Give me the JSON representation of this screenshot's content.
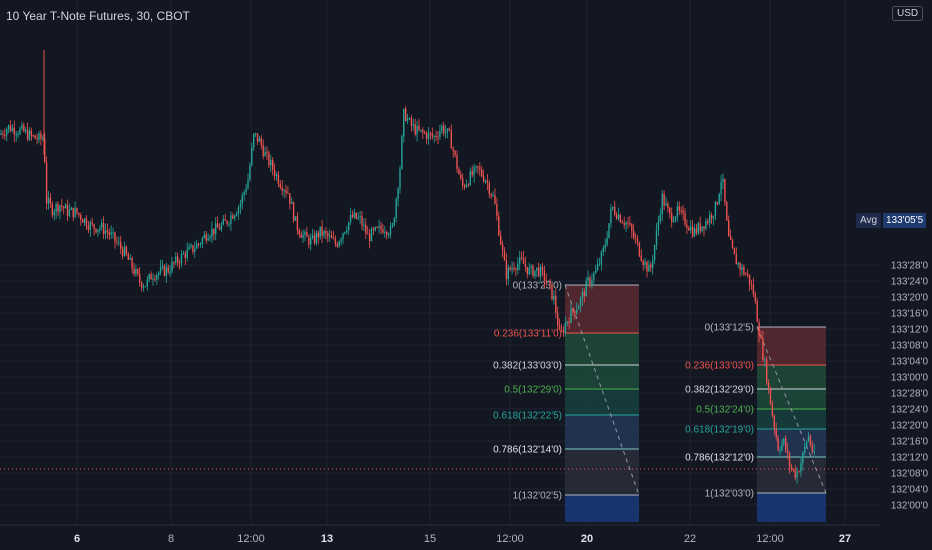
{
  "header": {
    "title": "10 Year T-Note Futures, 30, CBOT",
    "currency": "USD"
  },
  "price_tags": {
    "avg_label": "Avg",
    "avg_value": "133'05'5"
  },
  "colors": {
    "background": "#131722",
    "up": "#26a69a",
    "down": "#ef5350",
    "grid": "#1f2330",
    "axis_text": "#b2b5be"
  },
  "chart_data": {
    "type": "candlestick",
    "title": "10 Year T-Note Futures, 30, CBOT",
    "currency": "USD",
    "y_axis": {
      "position": "right",
      "ylim": [
        "131'30'0",
        "133'30'0"
      ],
      "ticks": [
        "132'00'0",
        "132'04'0",
        "132'08'0",
        "132'12'0",
        "132'16'0",
        "132'20'0",
        "132'24'0",
        "132'28'0",
        "133'00'0",
        "133'04'0",
        "133'08'0",
        "133'12'0",
        "133'16'0",
        "133'20'0",
        "133'24'0",
        "133'28'0"
      ]
    },
    "x_axis": {
      "ticks": [
        {
          "label": "6",
          "bold": true
        },
        {
          "label": "8",
          "bold": false
        },
        {
          "label": "12:00",
          "bold": false
        },
        {
          "label": "13",
          "bold": true
        },
        {
          "label": "15",
          "bold": false
        },
        {
          "label": "12:00",
          "bold": false
        },
        {
          "label": "20",
          "bold": true
        },
        {
          "label": "22",
          "bold": false
        },
        {
          "label": "12:00",
          "bold": false
        },
        {
          "label": "27",
          "bold": true
        }
      ]
    },
    "horizontal_line": {
      "price": "132'09'0",
      "style": "dotted",
      "color": "#ef5350"
    },
    "close_path": [
      [
        0,
        133.51
      ],
      [
        8,
        133.54
      ],
      [
        16,
        133.53
      ],
      [
        24,
        133.52
      ],
      [
        32,
        133.5
      ],
      [
        40,
        133.49
      ],
      [
        44,
        133.5
      ],
      [
        46,
        133.25
      ],
      [
        52,
        133.21
      ],
      [
        60,
        133.23
      ],
      [
        68,
        133.2
      ],
      [
        76,
        133.2
      ],
      [
        84,
        133.17
      ],
      [
        92,
        133.14
      ],
      [
        100,
        133.14
      ],
      [
        108,
        133.12
      ],
      [
        116,
        133.08
      ],
      [
        124,
        133.04
      ],
      [
        132,
        132.98
      ],
      [
        140,
        132.92
      ],
      [
        146,
        132.91
      ],
      [
        152,
        132.95
      ],
      [
        160,
        132.96
      ],
      [
        168,
        132.97
      ],
      [
        176,
        133.0
      ],
      [
        184,
        133.03
      ],
      [
        192,
        133.05
      ],
      [
        200,
        133.08
      ],
      [
        208,
        133.12
      ],
      [
        216,
        133.13
      ],
      [
        224,
        133.15
      ],
      [
        232,
        133.19
      ],
      [
        240,
        133.23
      ],
      [
        248,
        133.33
      ],
      [
        254,
        133.51
      ],
      [
        260,
        133.48
      ],
      [
        266,
        133.42
      ],
      [
        272,
        133.38
      ],
      [
        280,
        133.32
      ],
      [
        288,
        133.28
      ],
      [
        296,
        133.15
      ],
      [
        304,
        133.1
      ],
      [
        312,
        133.08
      ],
      [
        320,
        133.12
      ],
      [
        328,
        133.1
      ],
      [
        336,
        133.07
      ],
      [
        344,
        133.13
      ],
      [
        352,
        133.18
      ],
      [
        360,
        133.17
      ],
      [
        368,
        133.1
      ],
      [
        376,
        133.12
      ],
      [
        384,
        133.14
      ],
      [
        392,
        133.12
      ],
      [
        400,
        133.38
      ],
      [
        404,
        133.6
      ],
      [
        410,
        133.55
      ],
      [
        418,
        133.52
      ],
      [
        426,
        133.51
      ],
      [
        434,
        133.5
      ],
      [
        442,
        133.54
      ],
      [
        450,
        133.5
      ],
      [
        456,
        133.4
      ],
      [
        462,
        133.3
      ],
      [
        470,
        133.34
      ],
      [
        478,
        133.37
      ],
      [
        486,
        133.33
      ],
      [
        494,
        133.25
      ],
      [
        500,
        133.1
      ],
      [
        506,
        132.95
      ],
      [
        514,
        132.99
      ],
      [
        522,
        133.0
      ],
      [
        530,
        132.96
      ],
      [
        538,
        132.97
      ],
      [
        546,
        132.93
      ],
      [
        554,
        132.85
      ],
      [
        560,
        132.7
      ],
      [
        566,
        132.76
      ],
      [
        572,
        132.8
      ],
      [
        580,
        132.84
      ],
      [
        588,
        132.92
      ],
      [
        596,
        132.96
      ],
      [
        604,
        133.05
      ],
      [
        612,
        133.22
      ],
      [
        620,
        133.18
      ],
      [
        628,
        133.15
      ],
      [
        636,
        133.08
      ],
      [
        644,
        133.0
      ],
      [
        650,
        132.96
      ],
      [
        656,
        133.1
      ],
      [
        662,
        133.26
      ],
      [
        670,
        133.18
      ],
      [
        678,
        133.2
      ],
      [
        686,
        133.16
      ],
      [
        694,
        133.12
      ],
      [
        700,
        133.14
      ],
      [
        708,
        133.17
      ],
      [
        716,
        133.22
      ],
      [
        722,
        133.35
      ],
      [
        728,
        133.1
      ],
      [
        734,
        133.02
      ],
      [
        740,
        132.98
      ],
      [
        748,
        132.94
      ],
      [
        754,
        132.87
      ],
      [
        760,
        132.7
      ],
      [
        766,
        132.56
      ],
      [
        772,
        132.4
      ],
      [
        778,
        132.26
      ],
      [
        784,
        132.28
      ],
      [
        790,
        132.18
      ],
      [
        796,
        132.15
      ],
      [
        802,
        132.21
      ],
      [
        808,
        132.31
      ],
      [
        814,
        132.22
      ]
    ],
    "fib_retracements": [
      {
        "swing_high": "133'23'0",
        "swing_low": "132'02'5",
        "levels": [
          {
            "ratio": "0",
            "price": "133'23'0",
            "label": "0(133'23'0)",
            "label_color": "#b2b5be",
            "line_color": "#b2b5be",
            "fill": "#5c2a31"
          },
          {
            "ratio": "0.236",
            "price": "133'11'0",
            "label": "0.236(133'11'0)",
            "label_color": "#ef5350",
            "line_color": "#ef5350",
            "fill": "#1f4b36"
          },
          {
            "ratio": "0.382",
            "price": "133'03'0",
            "label": "0.382(133'03'0)",
            "label_color": "#d1d4dc",
            "line_color": "#d1d4dc",
            "fill": "#1d4a3a"
          },
          {
            "ratio": "0.5",
            "price": "132'29'0",
            "label": "0.5(132'29'0)",
            "label_color": "#4caf50",
            "line_color": "#4caf50",
            "fill": "#173f3d"
          },
          {
            "ratio": "0.618",
            "price": "132'22'5",
            "label": "0.618(132'22'5)",
            "label_color": "#26a69a",
            "line_color": "#26a69a",
            "fill": "#233755"
          },
          {
            "ratio": "0.786",
            "price": "132'14'0",
            "label": "0.786(132'14'0)",
            "label_color": "#e0e3eb",
            "line_color": "#80cbc4",
            "fill": "#2a2e39"
          },
          {
            "ratio": "1",
            "price": "132'02'5",
            "label": "1(132'02'5)",
            "label_color": "#b2b5be",
            "line_color": "#b2b5be",
            "fill": "#1a3a7a"
          }
        ]
      },
      {
        "swing_high": "133'12'5",
        "swing_low": "132'03'0",
        "levels": [
          {
            "ratio": "0",
            "price": "133'12'5",
            "label": "0(133'12'5)",
            "label_color": "#b2b5be",
            "line_color": "#b2b5be",
            "fill": "#5c2a31"
          },
          {
            "ratio": "0.236",
            "price": "133'03'0",
            "label": "0.236(133'03'0)",
            "label_color": "#ef5350",
            "line_color": "#ef5350",
            "fill": "#1f4b36"
          },
          {
            "ratio": "0.382",
            "price": "132'29'0",
            "label": "0.382(132'29'0)",
            "label_color": "#d1d4dc",
            "line_color": "#d1d4dc",
            "fill": "#1d4a3a"
          },
          {
            "ratio": "0.5",
            "price": "132'24'0",
            "label": "0.5(132'24'0)",
            "label_color": "#4caf50",
            "line_color": "#4caf50",
            "fill": "#173f3d"
          },
          {
            "ratio": "0.618",
            "price": "132'19'0",
            "label": "0.618(132'19'0)",
            "label_color": "#26a69a",
            "line_color": "#26a69a",
            "fill": "#233755"
          },
          {
            "ratio": "0.786",
            "price": "132'12'0",
            "label": "0.786(132'12'0)",
            "label_color": "#e0e3eb",
            "line_color": "#80cbc4",
            "fill": "#2a2e39"
          },
          {
            "ratio": "1",
            "price": "132'03'0",
            "label": "1(132'03'0)",
            "label_color": "#b2b5be",
            "line_color": "#b2b5be",
            "fill": "#1a3a7a"
          }
        ]
      }
    ]
  }
}
